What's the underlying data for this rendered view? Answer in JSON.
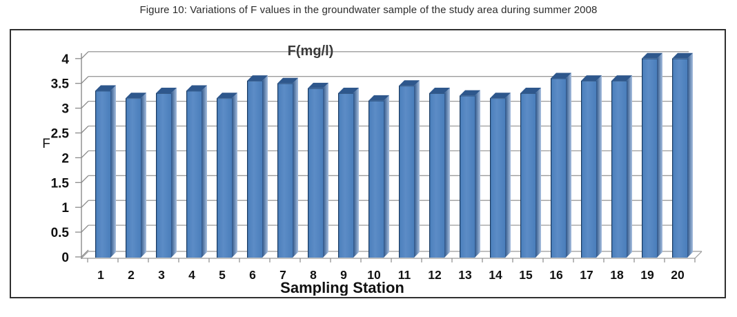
{
  "figure": {
    "caption": "Figure 10: Variations of F values in the groundwater sample of the study area during summer 2008"
  },
  "chart_data": {
    "type": "bar",
    "style": "3d-column",
    "title": "F(mg/l)",
    "xlabel": "Sampling Station",
    "ylabel": "F",
    "categories": [
      "1",
      "2",
      "3",
      "4",
      "5",
      "6",
      "7",
      "8",
      "9",
      "10",
      "11",
      "12",
      "13",
      "14",
      "15",
      "16",
      "17",
      "18",
      "19",
      "20"
    ],
    "values": [
      3.35,
      3.2,
      3.3,
      3.35,
      3.2,
      3.55,
      3.5,
      3.4,
      3.3,
      3.15,
      3.45,
      3.3,
      3.25,
      3.2,
      3.3,
      3.6,
      3.55,
      3.55,
      4.0,
      4.0
    ],
    "ylim": [
      0,
      4
    ],
    "yticks": [
      0,
      0.5,
      1,
      1.5,
      2,
      2.5,
      3,
      3.5,
      4
    ],
    "ytick_labels": [
      "0",
      "0.5",
      "1",
      "1.5",
      "2",
      "2.5",
      "3",
      "3.5",
      "4"
    ],
    "grid": true,
    "legend": "none",
    "colors": {
      "bar_front": "#4a7ebb",
      "bar_front_light": "#5c8cc6",
      "bar_side_dark": "#2c5488",
      "bar_side_light": "#a7bfdf",
      "bar_top": "#2e578c",
      "bar_edge": "#17375e",
      "gridline": "#9b9b9b",
      "axis": "#8a8a8a",
      "text": "#111111",
      "title_text": "#3a3a3a"
    }
  }
}
